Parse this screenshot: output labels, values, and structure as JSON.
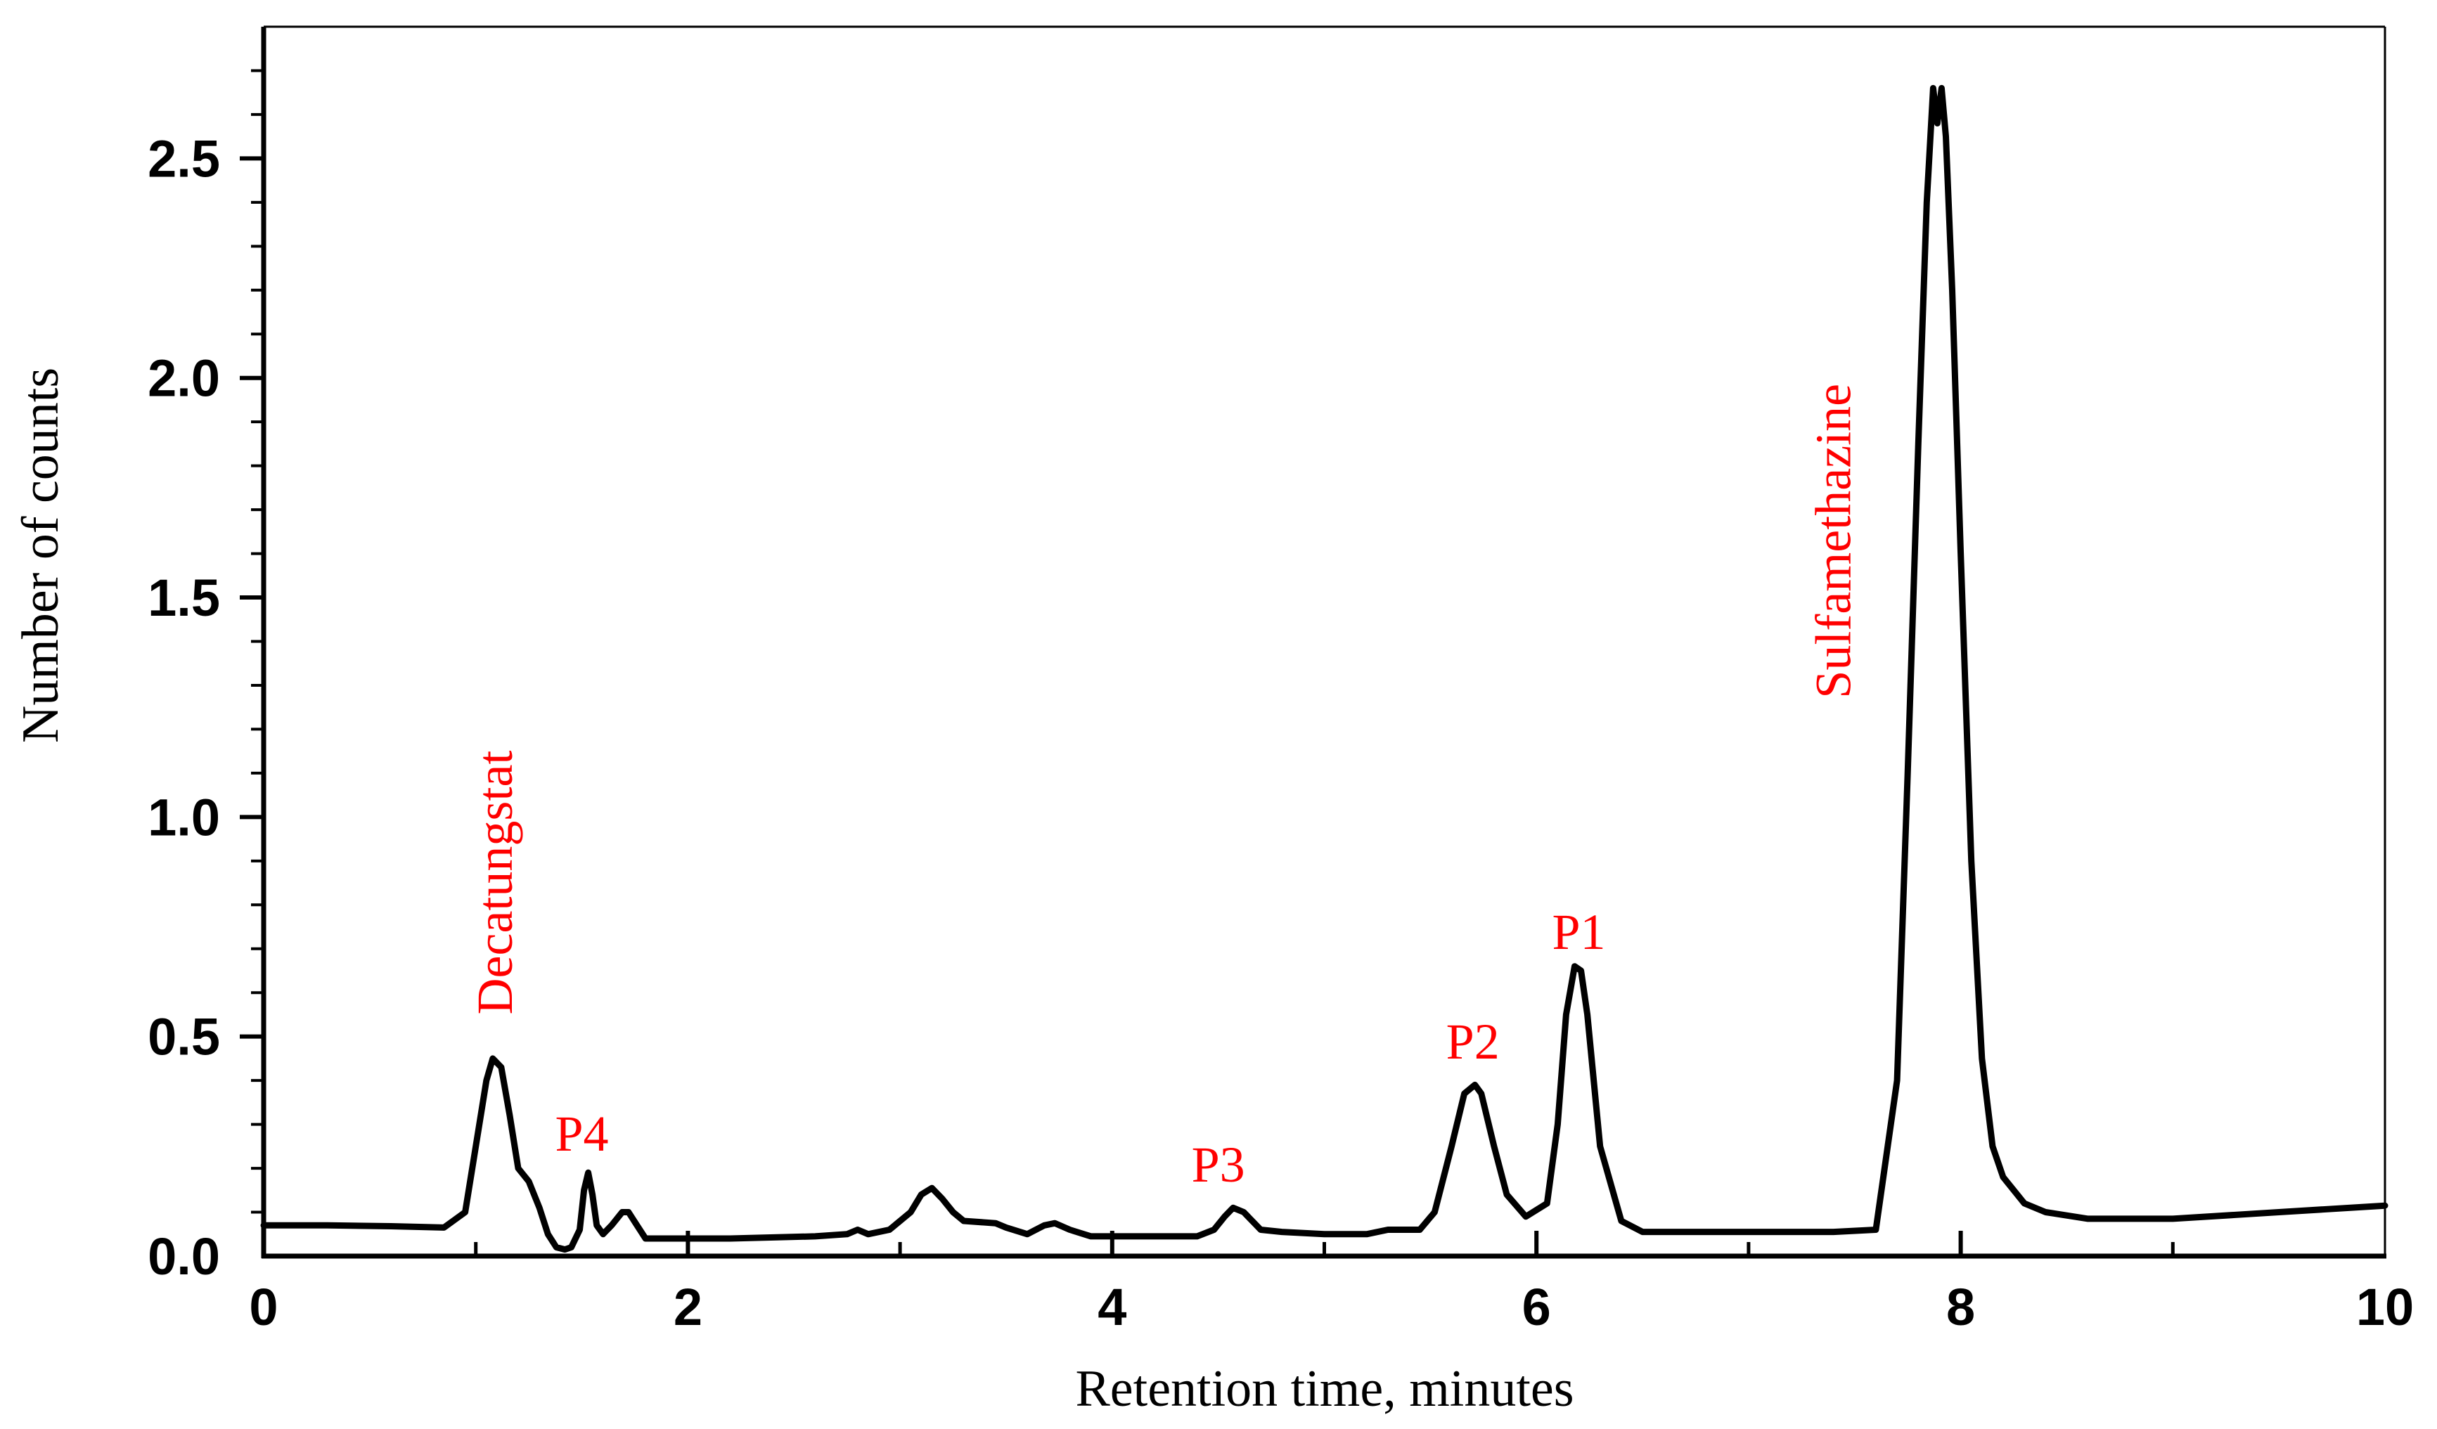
{
  "chart_data": {
    "type": "line",
    "title": "",
    "xlabel": "Retention time, minutes",
    "ylabel": "Number of counts",
    "xlim": [
      0,
      10
    ],
    "ylim": [
      0,
      2.8
    ],
    "xticks": [
      0,
      2,
      4,
      6,
      8,
      10
    ],
    "xtick_labels": [
      "0",
      "2",
      "4",
      "6",
      "8",
      "10"
    ],
    "yticks": [
      0,
      0.5,
      1.0,
      1.5,
      2.0,
      2.5
    ],
    "ytick_labels": [
      "0.0",
      "0.5",
      "1.0",
      "1.5",
      "2.0",
      "2.5"
    ],
    "grid": false,
    "line_color": "#000000",
    "annotation_color": "#ff0000",
    "series": [
      {
        "name": "chromatogram",
        "x": [
          0,
          0.3,
          0.6,
          0.85,
          0.95,
          1.0,
          1.05,
          1.08,
          1.12,
          1.16,
          1.2,
          1.25,
          1.3,
          1.34,
          1.38,
          1.42,
          1.45,
          1.49,
          1.51,
          1.53,
          1.55,
          1.57,
          1.6,
          1.64,
          1.69,
          1.72,
          1.76,
          1.8,
          1.9,
          2.2,
          2.6,
          2.75,
          2.8,
          2.85,
          2.95,
          3.05,
          3.1,
          3.15,
          3.2,
          3.25,
          3.3,
          3.45,
          3.5,
          3.6,
          3.68,
          3.73,
          3.8,
          3.9,
          4.1,
          4.4,
          4.48,
          4.53,
          4.57,
          4.62,
          4.7,
          4.8,
          5.0,
          5.2,
          5.3,
          5.45,
          5.52,
          5.6,
          5.66,
          5.71,
          5.74,
          5.8,
          5.86,
          5.95,
          6.05,
          6.1,
          6.14,
          6.18,
          6.21,
          6.24,
          6.3,
          6.4,
          6.5,
          6.6,
          7.0,
          7.4,
          7.6,
          7.7,
          7.75,
          7.8,
          7.84,
          7.87,
          7.89,
          7.91,
          7.93,
          7.96,
          8.0,
          8.05,
          8.1,
          8.15,
          8.2,
          8.3,
          8.4,
          8.6,
          9.0,
          9.5,
          10.0
        ],
        "y": [
          0.07,
          0.07,
          0.068,
          0.065,
          0.1,
          0.25,
          0.4,
          0.45,
          0.43,
          0.32,
          0.2,
          0.17,
          0.11,
          0.05,
          0.02,
          0.015,
          0.02,
          0.06,
          0.15,
          0.19,
          0.14,
          0.07,
          0.05,
          0.07,
          0.1,
          0.1,
          0.07,
          0.04,
          0.04,
          0.04,
          0.045,
          0.05,
          0.06,
          0.05,
          0.06,
          0.1,
          0.14,
          0.155,
          0.13,
          0.1,
          0.08,
          0.075,
          0.065,
          0.05,
          0.07,
          0.075,
          0.06,
          0.045,
          0.045,
          0.045,
          0.06,
          0.09,
          0.11,
          0.1,
          0.06,
          0.055,
          0.05,
          0.05,
          0.06,
          0.06,
          0.1,
          0.25,
          0.37,
          0.39,
          0.37,
          0.25,
          0.14,
          0.09,
          0.12,
          0.3,
          0.55,
          0.66,
          0.65,
          0.55,
          0.25,
          0.08,
          0.055,
          0.055,
          0.055,
          0.055,
          0.06,
          0.4,
          1.1,
          1.85,
          2.4,
          2.66,
          2.58,
          2.66,
          2.55,
          2.2,
          1.6,
          0.9,
          0.45,
          0.25,
          0.18,
          0.12,
          0.1,
          0.085,
          0.085,
          0.1,
          0.115
        ]
      }
    ],
    "annotations": [
      {
        "text": "Decatungstat",
        "x": 1.09,
        "y": 0.55,
        "rotation": "vertical"
      },
      {
        "text": "P4",
        "x": 1.5,
        "y": 0.24,
        "rotation": "horizontal"
      },
      {
        "text": "P3",
        "x": 4.5,
        "y": 0.17,
        "rotation": "horizontal"
      },
      {
        "text": "P2",
        "x": 5.7,
        "y": 0.45,
        "rotation": "horizontal"
      },
      {
        "text": "P1",
        "x": 6.2,
        "y": 0.7,
        "rotation": "horizontal"
      },
      {
        "text": "Sulfamethazine",
        "x": 7.4,
        "y": 1.27,
        "rotation": "vertical"
      }
    ]
  }
}
